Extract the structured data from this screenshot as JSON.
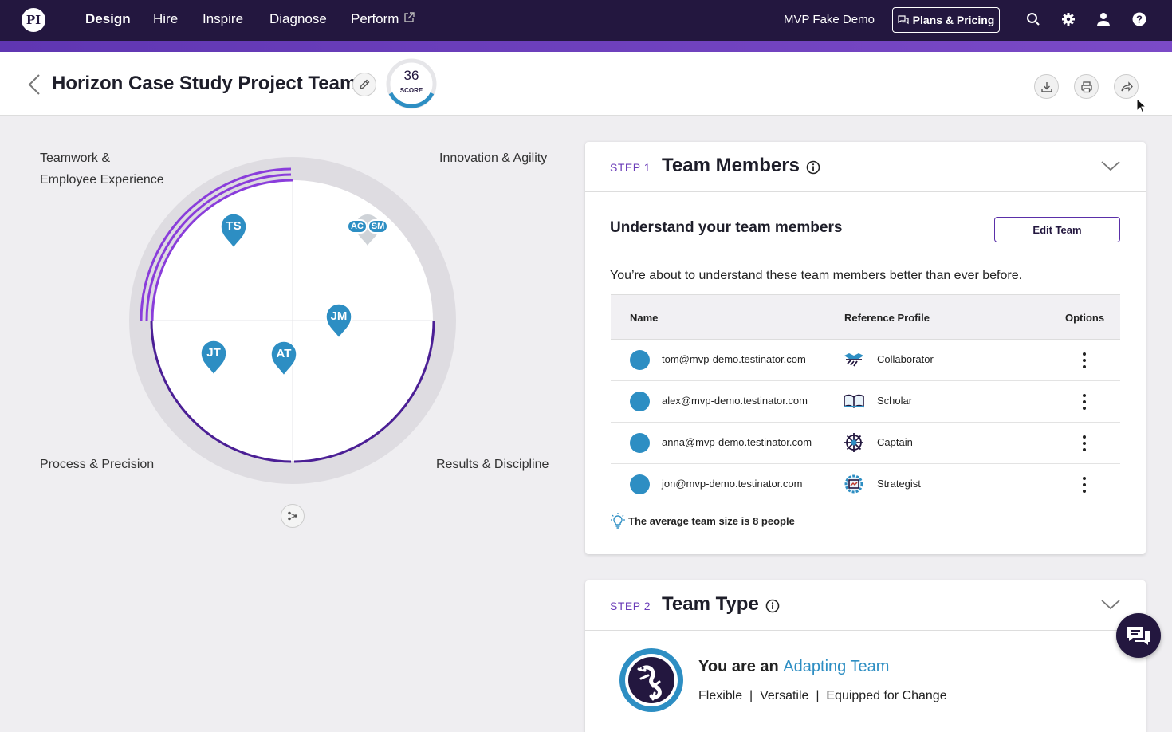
{
  "nav": {
    "logo_text": "PI",
    "links": [
      "Design",
      "Hire",
      "Inspire",
      "Diagnose",
      "Perform"
    ],
    "active": "Design",
    "demo_label": "MVP Fake Demo",
    "plans_label": "Plans & Pricing",
    "icons": [
      "search-icon",
      "gear-icon",
      "user-icon",
      "help-icon"
    ]
  },
  "header": {
    "title": "Horizon Case Study Project Team",
    "score": "36",
    "score_label": "SCORE",
    "actions": [
      "download-icon",
      "print-icon",
      "share-icon"
    ]
  },
  "chart": {
    "quadrants": {
      "top_left": [
        "Teamwork &",
        "Employee Experience"
      ],
      "top_right": "Innovation & Agility",
      "bottom_left": "Process & Precision",
      "bottom_right": "Results & Discipline"
    },
    "members": [
      "TS",
      "JM",
      "JT",
      "AT"
    ],
    "pair": [
      "AC",
      "SM"
    ]
  },
  "step1": {
    "tag": "STEP 1",
    "title": "Team Members",
    "subtitle": "Understand your team members",
    "edit_team": "Edit Team",
    "description": "You’re about to understand these team members better than ever before.",
    "columns": [
      "Name",
      "Reference Profile",
      "Options"
    ],
    "rows": [
      {
        "email": "tom@mvp-demo.testinator.com",
        "profile": "Collaborator"
      },
      {
        "email": "alex@mvp-demo.testinator.com",
        "profile": "Scholar"
      },
      {
        "email": "anna@mvp-demo.testinator.com",
        "profile": "Captain"
      },
      {
        "email": "jon@mvp-demo.testinator.com",
        "profile": "Strategist"
      }
    ],
    "tip": "The average team size is 8 people"
  },
  "step2": {
    "tag": "STEP 2",
    "title": "Team Type",
    "prefix": "You are an",
    "team_type": "Adapting Team",
    "traits": "Flexible  |  Versatile  |  Equipped for Change"
  },
  "colors": {
    "nav_bg": "#23173f",
    "accent": "#6a3cb8",
    "pin_blue": "#2d8ec3"
  }
}
